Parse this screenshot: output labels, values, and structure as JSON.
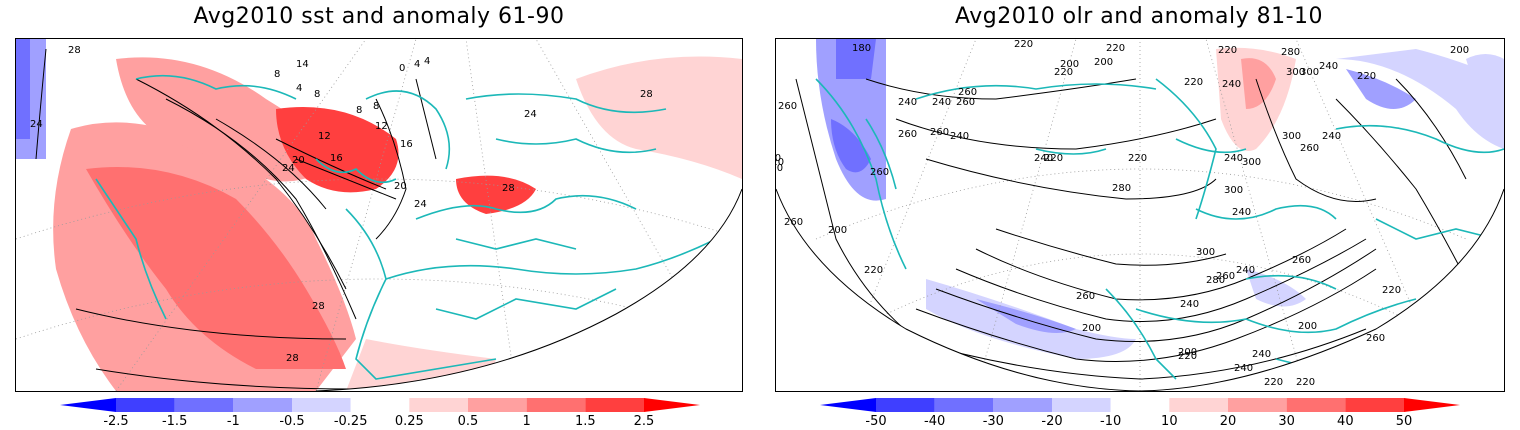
{
  "panels": [
    {
      "title": "Avg2010 sst and anomaly 61-90",
      "variable": "sst",
      "colorbar_labels": [
        "-2.5",
        "-1.5",
        "-1",
        "-0.5",
        "-0.25",
        "0.25",
        "0.5",
        "1",
        "1.5",
        "2.5"
      ],
      "colorbar_colors": [
        "#0000ff",
        "#3f3fff",
        "#7070ff",
        "#a0a0ff",
        "#d4d4ff",
        "#ffffff",
        "#ffd4d4",
        "#ffa0a0",
        "#ff7070",
        "#ff3f3f",
        "#ff0000"
      ],
      "contour_labels": [
        "28",
        "24",
        "8",
        "14",
        "4",
        "0",
        "4",
        "8",
        "4",
        "8",
        "8",
        "12",
        "12",
        "16",
        "16",
        "20",
        "24",
        "20",
        "24",
        "24",
        "28",
        "28",
        "28",
        "28"
      ]
    },
    {
      "title": "Avg2010 olr and anomaly 81-10",
      "variable": "olr",
      "colorbar_labels": [
        "-50",
        "-40",
        "-30",
        "-20",
        "-10",
        "10",
        "20",
        "30",
        "40",
        "50"
      ],
      "colorbar_colors": [
        "#0000ff",
        "#3f3fff",
        "#7070ff",
        "#a0a0ff",
        "#d4d4ff",
        "#ffffff",
        "#ffd4d4",
        "#ffa0a0",
        "#ff7070",
        "#ff3f3f",
        "#ff0000"
      ],
      "contour_labels": [
        "180",
        "220",
        "220",
        "200",
        "220",
        "200",
        "220",
        "220",
        "240",
        "280",
        "300",
        "300",
        "240",
        "200",
        "220",
        "260",
        "260",
        "240",
        "240",
        "260",
        "260",
        "260",
        "240",
        "240",
        "220",
        "220",
        "240",
        "200",
        "220",
        "240",
        "280",
        "300",
        "300",
        "240",
        "260",
        "260",
        "300",
        "240",
        "260",
        "200",
        "260",
        "220",
        "240",
        "220",
        "260",
        "300",
        "280",
        "240",
        "260",
        "200",
        "200",
        "200",
        "220",
        "240",
        "220",
        "220",
        "260",
        "240",
        "260"
      ]
    }
  ],
  "colors": {
    "coastline": "#1cb8b8",
    "contour": "#000000",
    "grid": "#9a9a9a"
  }
}
